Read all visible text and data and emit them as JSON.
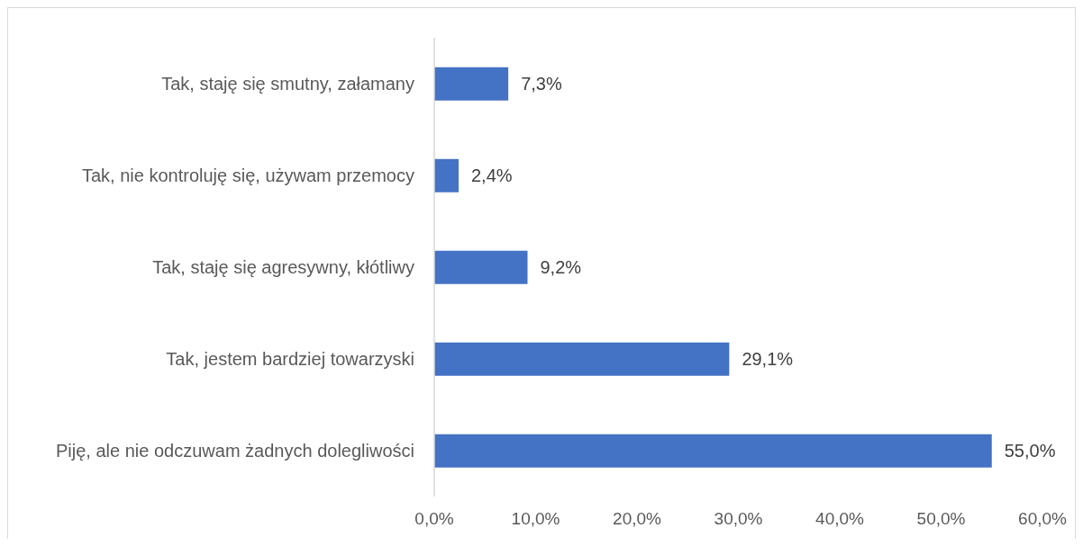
{
  "chart_data": {
    "type": "bar",
    "orientation": "horizontal",
    "categories": [
      "Tak, staję się smutny, załamany",
      "Tak, nie kontroluję się, używam przemocy",
      "Tak, staję się agresywny, kłótliwy",
      "Tak, jestem bardziej towarzyski",
      "Piję, ale nie odczuwam żadnych dolegliwości"
    ],
    "values": [
      7.3,
      2.4,
      9.2,
      29.1,
      55.0
    ],
    "value_labels": [
      "7,3%",
      "2,4%",
      "9,2%",
      "29,1%",
      "55,0%"
    ],
    "color": "#4472c4",
    "xlim": [
      0,
      60
    ],
    "xticks": [
      {
        "value": 0,
        "label": "0,0%"
      },
      {
        "value": 10,
        "label": "10,0%"
      },
      {
        "value": 20,
        "label": "20,0%"
      },
      {
        "value": 30,
        "label": "30,0%"
      },
      {
        "value": 40,
        "label": "40,0%"
      },
      {
        "value": 50,
        "label": "50,0%"
      },
      {
        "value": 60,
        "label": "60,0%"
      }
    ],
    "grid": false,
    "legend": false
  }
}
